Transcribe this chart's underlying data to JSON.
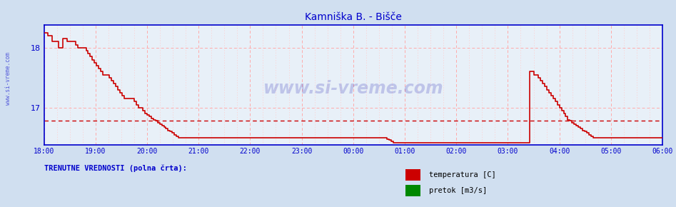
{
  "title": "Kamniška B. - Bišče",
  "title_color": "#0000cc",
  "bg_color": "#d0dff0",
  "plot_bg_color": "#e8f0f8",
  "grid_color_major": "#ffaaaa",
  "grid_color_minor": "#ffcccc",
  "axis_color": "#0000cc",
  "temp_color": "#cc0000",
  "pretok_color": "#008800",
  "avg_value": 16.78,
  "ylim": [
    16.38,
    18.38
  ],
  "yticks": [
    17.0,
    18.0
  ],
  "xtick_labels": [
    "18:00",
    "19:00",
    "20:00",
    "21:00",
    "22:00",
    "23:00",
    "00:00",
    "01:00",
    "02:00",
    "03:00",
    "04:00",
    "05:00",
    "06:00"
  ],
  "temp_data": [
    18.25,
    18.25,
    18.2,
    18.2,
    18.1,
    18.1,
    18.1,
    18.0,
    18.0,
    18.15,
    18.15,
    18.1,
    18.1,
    18.1,
    18.1,
    18.05,
    18.0,
    18.0,
    18.0,
    18.0,
    17.95,
    17.9,
    17.85,
    17.8,
    17.75,
    17.7,
    17.65,
    17.6,
    17.55,
    17.55,
    17.55,
    17.5,
    17.45,
    17.4,
    17.35,
    17.3,
    17.25,
    17.2,
    17.15,
    17.15,
    17.15,
    17.15,
    17.15,
    17.1,
    17.05,
    17.0,
    17.0,
    16.95,
    16.9,
    16.88,
    16.85,
    16.82,
    16.8,
    16.78,
    16.75,
    16.72,
    16.7,
    16.68,
    16.65,
    16.62,
    16.6,
    16.58,
    16.55,
    16.52,
    16.5,
    16.5,
    16.5,
    16.5,
    16.5,
    16.5,
    16.5,
    16.5,
    16.5,
    16.5,
    16.5,
    16.5,
    16.5,
    16.5,
    16.5,
    16.5,
    16.5,
    16.5,
    16.5,
    16.5,
    16.5,
    16.5,
    16.5,
    16.5,
    16.5,
    16.5,
    16.5,
    16.5,
    16.5,
    16.5,
    16.5,
    16.5,
    16.5,
    16.5,
    16.5,
    16.5,
    16.5,
    16.5,
    16.5,
    16.5,
    16.5,
    16.5,
    16.5,
    16.5,
    16.5,
    16.5,
    16.5,
    16.5,
    16.5,
    16.5,
    16.5,
    16.5,
    16.5,
    16.5,
    16.5,
    16.5,
    16.5,
    16.5,
    16.5,
    16.5,
    16.5,
    16.5,
    16.5,
    16.5,
    16.5,
    16.5,
    16.5,
    16.5,
    16.5,
    16.5,
    16.5,
    16.5,
    16.5,
    16.5,
    16.5,
    16.5,
    16.5,
    16.5,
    16.5,
    16.5,
    16.5,
    16.5,
    16.5,
    16.5,
    16.5,
    16.5,
    16.5,
    16.5,
    16.5,
    16.5,
    16.5,
    16.5,
    16.5,
    16.5,
    16.5,
    16.5,
    16.5,
    16.5,
    16.5,
    16.48,
    16.46,
    16.44,
    16.42,
    16.42,
    16.42,
    16.42,
    16.42,
    16.42,
    16.42,
    16.42,
    16.42,
    16.42,
    16.42,
    16.42,
    16.42,
    16.42,
    16.42,
    16.42,
    16.42,
    16.42,
    16.42,
    16.42,
    16.42,
    16.42,
    16.42,
    16.42,
    16.42,
    16.42,
    16.42,
    16.42,
    16.42,
    16.42,
    16.42,
    16.42,
    16.42,
    16.42,
    16.42,
    16.42,
    16.42,
    16.42,
    16.42,
    16.42,
    16.42,
    16.42,
    16.42,
    16.42,
    16.42,
    16.42,
    16.42,
    16.42,
    16.42,
    16.42,
    16.42,
    16.42,
    16.42,
    16.42,
    16.42,
    16.42,
    16.42,
    16.42,
    16.42,
    16.42,
    16.42,
    16.42,
    16.42,
    16.42,
    16.42,
    17.6,
    17.6,
    17.55,
    17.55,
    17.5,
    17.45,
    17.4,
    17.35,
    17.3,
    17.25,
    17.2,
    17.15,
    17.1,
    17.05,
    17.0,
    16.95,
    16.9,
    16.85,
    16.8,
    16.78,
    16.75,
    16.72,
    16.7,
    16.68,
    16.65,
    16.62,
    16.6,
    16.58,
    16.55,
    16.52,
    16.5,
    16.5,
    16.5,
    16.5,
    16.5,
    16.5,
    16.5,
    16.5,
    16.5,
    16.5,
    16.5,
    16.5,
    16.5,
    16.5,
    16.5,
    16.5,
    16.5,
    16.5,
    16.5,
    16.5,
    16.5,
    16.5,
    16.5,
    16.5,
    16.5,
    16.5,
    16.5,
    16.5,
    16.5,
    16.5,
    16.5,
    16.5,
    16.5,
    16.5
  ],
  "watermark_text": "www.si-vreme.com",
  "watermark_color": "#0000aa",
  "watermark_alpha": 0.18,
  "legend_label_temp": "temperatura [C]",
  "legend_label_pretok": "pretok [m3/s]",
  "footer_text": "TRENUTNE VREDNOSTI (polna črta):",
  "footer_color": "#0000cc",
  "side_watermark": "www.si-vreme.com"
}
